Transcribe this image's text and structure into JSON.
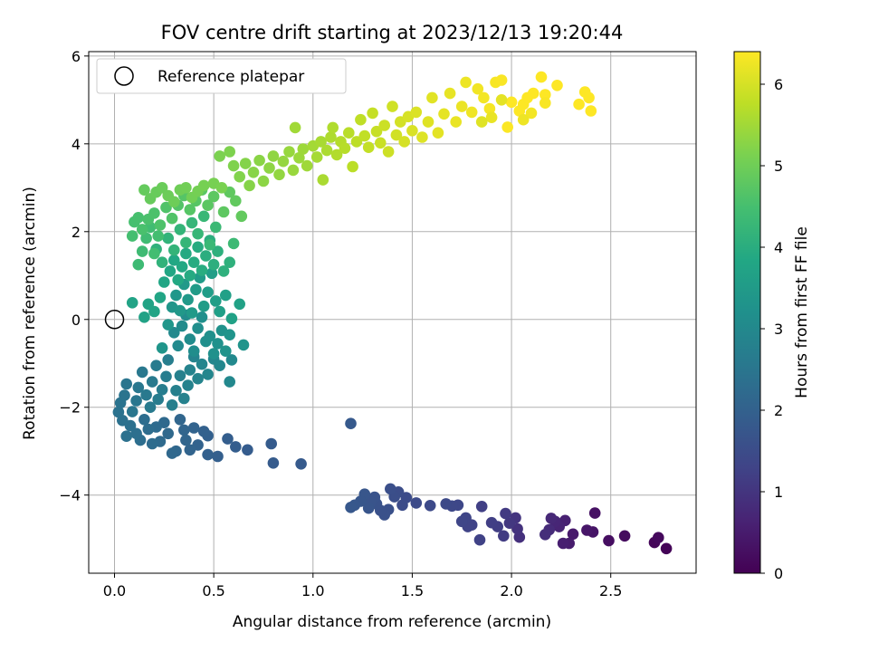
{
  "chart_data": {
    "type": "scatter",
    "title": "FOV centre drift starting at 2023/12/13 19:20:44",
    "xlabel": "Angular distance from reference (arcmin)",
    "ylabel": "Rotation from reference (arcmin)",
    "xlim": [
      -0.13,
      2.93
    ],
    "ylim": [
      -5.78,
      6.1
    ],
    "xticks": [
      0.0,
      0.5,
      1.0,
      1.5,
      2.0,
      2.5
    ],
    "xtick_labels": [
      "0.0",
      "0.5",
      "1.0",
      "1.5",
      "2.0",
      "2.5"
    ],
    "yticks": [
      -4,
      -2,
      0,
      2,
      4,
      6
    ],
    "ytick_labels": [
      "−4",
      "−2",
      "0",
      "2",
      "4",
      "6"
    ],
    "grid": true,
    "legend": {
      "position": "top-left",
      "entries": [
        {
          "label": "Reference platepar",
          "marker": "open-circle"
        }
      ]
    },
    "reference_point": {
      "x": 0.0,
      "y": 0.0
    },
    "colorbar": {
      "label": "Hours from first FF file",
      "colormap": "viridis",
      "range": [
        0,
        6.4
      ],
      "ticks": [
        0,
        1,
        2,
        3,
        4,
        5,
        6
      ],
      "tick_labels": [
        "0",
        "1",
        "2",
        "3",
        "4",
        "5",
        "6"
      ]
    },
    "points": [
      [
        2.78,
        -5.22,
        0.05
      ],
      [
        2.72,
        -5.08,
        0.1
      ],
      [
        2.74,
        -4.97,
        0.15
      ],
      [
        2.57,
        -4.93,
        0.2
      ],
      [
        2.49,
        -5.04,
        0.25
      ],
      [
        2.42,
        -4.41,
        0.3
      ],
      [
        2.41,
        -4.84,
        0.35
      ],
      [
        2.38,
        -4.8,
        0.4
      ],
      [
        2.31,
        -4.89,
        0.45
      ],
      [
        2.29,
        -5.1,
        0.5
      ],
      [
        2.26,
        -5.1,
        0.55
      ],
      [
        2.27,
        -4.58,
        0.6
      ],
      [
        2.24,
        -4.72,
        0.65
      ],
      [
        2.22,
        -4.6,
        0.7
      ],
      [
        2.2,
        -4.53,
        0.75
      ],
      [
        2.19,
        -4.79,
        0.8
      ],
      [
        2.17,
        -4.9,
        0.85
      ],
      [
        2.04,
        -4.96,
        0.9
      ],
      [
        2.03,
        -4.77,
        0.95
      ],
      [
        2.02,
        -4.52,
        1.0
      ],
      [
        1.99,
        -4.64,
        1.05
      ],
      [
        1.97,
        -4.42,
        1.1
      ],
      [
        1.96,
        -4.93,
        1.15
      ],
      [
        1.93,
        -4.72,
        1.18
      ],
      [
        1.9,
        -4.63,
        1.2
      ],
      [
        1.85,
        -4.26,
        1.22
      ],
      [
        1.84,
        -5.02,
        1.25
      ],
      [
        1.8,
        -4.68,
        1.28
      ],
      [
        1.78,
        -4.72,
        1.3
      ],
      [
        1.77,
        -4.52,
        1.32
      ],
      [
        1.75,
        -4.6,
        1.35
      ],
      [
        1.73,
        -4.23,
        1.37
      ],
      [
        1.7,
        -4.25,
        1.4
      ],
      [
        1.67,
        -4.2,
        1.42
      ],
      [
        1.59,
        -4.24,
        1.44
      ],
      [
        1.52,
        -4.18,
        1.46
      ],
      [
        1.47,
        -4.06,
        1.48
      ],
      [
        1.45,
        -4.23,
        1.5
      ],
      [
        1.43,
        -3.93,
        1.52
      ],
      [
        1.41,
        -4.04,
        1.54
      ],
      [
        1.39,
        -3.86,
        1.56
      ],
      [
        1.38,
        -4.33,
        1.58
      ],
      [
        1.36,
        -4.45,
        1.6
      ],
      [
        1.34,
        -4.35,
        1.62
      ],
      [
        1.32,
        -4.2,
        1.64
      ],
      [
        1.31,
        -4.05,
        1.66
      ],
      [
        1.29,
        -4.16,
        1.68
      ],
      [
        1.28,
        -4.3,
        1.7
      ],
      [
        1.26,
        -3.98,
        1.72
      ],
      [
        1.24,
        -4.14,
        1.74
      ],
      [
        1.21,
        -4.23,
        1.76
      ],
      [
        1.19,
        -4.28,
        1.78
      ],
      [
        1.19,
        -2.37,
        1.8
      ],
      [
        0.94,
        -3.29,
        1.82
      ],
      [
        0.8,
        -3.27,
        1.84
      ],
      [
        0.79,
        -2.83,
        1.86
      ],
      [
        0.67,
        -2.97,
        1.88
      ],
      [
        0.61,
        -2.9,
        1.9
      ],
      [
        0.57,
        -2.72,
        1.92
      ],
      [
        0.52,
        -3.12,
        1.94
      ],
      [
        0.47,
        -3.08,
        1.96
      ],
      [
        0.47,
        -2.65,
        1.98
      ],
      [
        0.45,
        -2.55,
        2.0
      ],
      [
        0.42,
        -2.86,
        2.02
      ],
      [
        0.4,
        -2.47,
        2.04
      ],
      [
        0.38,
        -2.97,
        2.06
      ],
      [
        0.36,
        -2.75,
        2.08
      ],
      [
        0.35,
        -2.52,
        2.1
      ],
      [
        0.33,
        -2.28,
        2.12
      ],
      [
        0.31,
        -3.0,
        2.14
      ],
      [
        0.29,
        -3.05,
        2.16
      ],
      [
        0.27,
        -2.6,
        2.18
      ],
      [
        0.25,
        -2.35,
        2.2
      ],
      [
        0.23,
        -2.78,
        2.22
      ],
      [
        0.21,
        -2.45,
        2.24
      ],
      [
        0.19,
        -2.83,
        2.26
      ],
      [
        0.17,
        -2.5,
        2.28
      ],
      [
        0.15,
        -2.28,
        2.3
      ],
      [
        0.13,
        -2.75,
        2.32
      ],
      [
        0.11,
        -2.6,
        2.34
      ],
      [
        0.08,
        -2.42,
        2.36
      ],
      [
        0.06,
        -2.66,
        2.38
      ],
      [
        0.04,
        -2.3,
        2.4
      ],
      [
        0.02,
        -2.11,
        2.42
      ],
      [
        0.03,
        -1.9,
        2.44
      ],
      [
        0.05,
        -1.73,
        2.46
      ],
      [
        0.06,
        -1.47,
        2.48
      ],
      [
        0.09,
        -2.1,
        2.5
      ],
      [
        0.11,
        -1.85,
        2.52
      ],
      [
        0.12,
        -1.55,
        2.54
      ],
      [
        0.14,
        -1.2,
        2.56
      ],
      [
        0.16,
        -1.72,
        2.58
      ],
      [
        0.18,
        -2.0,
        2.6
      ],
      [
        0.19,
        -1.42,
        2.62
      ],
      [
        0.21,
        -1.05,
        2.64
      ],
      [
        0.22,
        -1.82,
        2.66
      ],
      [
        0.24,
        -1.6,
        2.68
      ],
      [
        0.26,
        -1.3,
        2.7
      ],
      [
        0.27,
        -0.92,
        2.72
      ],
      [
        0.29,
        -1.95,
        2.74
      ],
      [
        0.31,
        -1.62,
        2.76
      ],
      [
        0.33,
        -1.28,
        2.78
      ],
      [
        0.35,
        -1.8,
        2.8
      ],
      [
        0.37,
        -1.5,
        2.82
      ],
      [
        0.38,
        -1.15,
        2.84
      ],
      [
        0.4,
        -0.85,
        2.86
      ],
      [
        0.42,
        -1.35,
        2.88
      ],
      [
        0.44,
        -1.02,
        2.9
      ],
      [
        0.47,
        -1.25,
        2.92
      ],
      [
        0.5,
        -0.9,
        2.94
      ],
      [
        0.53,
        -1.05,
        2.96
      ],
      [
        0.58,
        -1.42,
        2.98
      ],
      [
        0.59,
        -0.92,
        3.0
      ],
      [
        0.3,
        -0.3,
        3.02
      ],
      [
        0.32,
        -0.6,
        3.04
      ],
      [
        0.34,
        -0.15,
        3.06
      ],
      [
        0.36,
        0.1,
        3.08
      ],
      [
        0.38,
        -0.45,
        3.1
      ],
      [
        0.4,
        -0.72,
        3.12
      ],
      [
        0.42,
        -0.2,
        3.14
      ],
      [
        0.44,
        0.05,
        3.16
      ],
      [
        0.46,
        -0.5,
        3.18
      ],
      [
        0.48,
        -0.38,
        3.2
      ],
      [
        0.5,
        -0.78,
        3.22
      ],
      [
        0.52,
        -0.55,
        3.24
      ],
      [
        0.54,
        -0.25,
        3.26
      ],
      [
        0.56,
        -0.72,
        3.28
      ],
      [
        0.58,
        -0.35,
        3.3
      ],
      [
        0.65,
        -0.58,
        3.32
      ],
      [
        0.24,
        -0.65,
        3.34
      ],
      [
        0.27,
        -0.12,
        3.36
      ],
      [
        0.29,
        0.28,
        3.38
      ],
      [
        0.31,
        0.55,
        3.4
      ],
      [
        0.33,
        0.2,
        3.42
      ],
      [
        0.35,
        0.8,
        3.44
      ],
      [
        0.37,
        0.45,
        3.46
      ],
      [
        0.39,
        0.15,
        3.48
      ],
      [
        0.41,
        0.68,
        3.5
      ],
      [
        0.43,
        0.95,
        3.52
      ],
      [
        0.45,
        0.3,
        3.54
      ],
      [
        0.47,
        0.62,
        3.56
      ],
      [
        0.49,
        1.05,
        3.58
      ],
      [
        0.51,
        0.42,
        3.6
      ],
      [
        0.53,
        0.18,
        3.62
      ],
      [
        0.56,
        0.55,
        3.64
      ],
      [
        0.59,
        0.02,
        3.66
      ],
      [
        0.63,
        0.35,
        3.68
      ],
      [
        0.15,
        0.05,
        3.7
      ],
      [
        0.09,
        0.38,
        3.72
      ],
      [
        0.17,
        0.35,
        3.74
      ],
      [
        0.2,
        0.18,
        3.76
      ],
      [
        0.23,
        0.5,
        3.78
      ],
      [
        0.25,
        0.85,
        3.8
      ],
      [
        0.28,
        1.1,
        3.82
      ],
      [
        0.3,
        1.35,
        3.84
      ],
      [
        0.32,
        0.9,
        3.86
      ],
      [
        0.34,
        1.2,
        3.88
      ],
      [
        0.36,
        1.5,
        3.9
      ],
      [
        0.38,
        1.0,
        3.92
      ],
      [
        0.4,
        1.3,
        3.94
      ],
      [
        0.42,
        1.65,
        3.96
      ],
      [
        0.44,
        1.12,
        3.98
      ],
      [
        0.46,
        1.45,
        4.0
      ],
      [
        0.48,
        1.8,
        4.02
      ],
      [
        0.5,
        1.25,
        4.04
      ],
      [
        0.52,
        1.55,
        4.06
      ],
      [
        0.55,
        1.1,
        4.08
      ],
      [
        0.58,
        1.3,
        4.1
      ],
      [
        0.21,
        1.6,
        4.12
      ],
      [
        0.24,
        1.3,
        4.14
      ],
      [
        0.27,
        1.85,
        4.16
      ],
      [
        0.3,
        1.58,
        4.18
      ],
      [
        0.33,
        2.05,
        4.2
      ],
      [
        0.36,
        1.75,
        4.22
      ],
      [
        0.39,
        2.2,
        4.24
      ],
      [
        0.42,
        1.95,
        4.26
      ],
      [
        0.45,
        2.35,
        4.28
      ],
      [
        0.48,
        1.7,
        4.3
      ],
      [
        0.51,
        2.1,
        4.32
      ],
      [
        0.6,
        1.73,
        4.34
      ],
      [
        0.12,
        1.25,
        4.36
      ],
      [
        0.14,
        1.55,
        4.38
      ],
      [
        0.16,
        1.85,
        4.4
      ],
      [
        0.18,
        2.1,
        4.42
      ],
      [
        0.2,
        1.5,
        4.44
      ],
      [
        0.22,
        1.9,
        4.46
      ],
      [
        0.09,
        1.9,
        4.48
      ],
      [
        0.1,
        2.22,
        4.5
      ],
      [
        0.12,
        2.32,
        4.52
      ],
      [
        0.14,
        2.05,
        4.54
      ],
      [
        0.17,
        2.28,
        4.56
      ],
      [
        0.2,
        2.42,
        4.58
      ],
      [
        0.23,
        2.15,
        4.6
      ],
      [
        0.26,
        2.55,
        4.62
      ],
      [
        0.29,
        2.3,
        4.64
      ],
      [
        0.32,
        2.6,
        4.66
      ],
      [
        0.35,
        2.82,
        4.68
      ],
      [
        0.38,
        2.5,
        4.7
      ],
      [
        0.41,
        2.7,
        4.72
      ],
      [
        0.44,
        2.95,
        4.74
      ],
      [
        0.47,
        2.6,
        4.76
      ],
      [
        0.5,
        2.8,
        4.78
      ],
      [
        0.55,
        2.45,
        4.8
      ],
      [
        0.58,
        2.9,
        4.82
      ],
      [
        0.61,
        2.7,
        4.84
      ],
      [
        0.64,
        2.35,
        4.86
      ],
      [
        0.15,
        2.95,
        4.88
      ],
      [
        0.18,
        2.75,
        4.9
      ],
      [
        0.21,
        2.9,
        4.92
      ],
      [
        0.24,
        3.0,
        4.94
      ],
      [
        0.27,
        2.82,
        4.96
      ],
      [
        0.3,
        2.68,
        4.98
      ],
      [
        0.33,
        2.95,
        5.0
      ],
      [
        0.36,
        3.0,
        5.02
      ],
      [
        0.39,
        2.78,
        5.04
      ],
      [
        0.42,
        2.92,
        5.06
      ],
      [
        0.45,
        3.05,
        5.08
      ],
      [
        0.5,
        3.1,
        5.1
      ],
      [
        0.54,
        3.0,
        5.12
      ],
      [
        0.53,
        3.72,
        5.14
      ],
      [
        0.58,
        3.82,
        5.16
      ],
      [
        0.6,
        3.5,
        5.18
      ],
      [
        0.63,
        3.25,
        5.2
      ],
      [
        0.66,
        3.55,
        5.22
      ],
      [
        0.68,
        3.05,
        5.24
      ],
      [
        0.7,
        3.35,
        5.26
      ],
      [
        0.73,
        3.62,
        5.28
      ],
      [
        0.75,
        3.15,
        5.3
      ],
      [
        0.78,
        3.45,
        5.32
      ],
      [
        0.8,
        3.72,
        5.34
      ],
      [
        0.83,
        3.3,
        5.36
      ],
      [
        0.85,
        3.6,
        5.38
      ],
      [
        0.88,
        3.82,
        5.4
      ],
      [
        0.9,
        3.4,
        5.42
      ],
      [
        0.93,
        3.68,
        5.44
      ],
      [
        0.95,
        3.88,
        5.46
      ],
      [
        0.97,
        3.5,
        5.48
      ],
      [
        0.91,
        4.37,
        5.5
      ],
      [
        1.0,
        3.95,
        5.52
      ],
      [
        1.02,
        3.7,
        5.54
      ],
      [
        1.04,
        4.05,
        5.56
      ],
      [
        1.05,
        3.18,
        5.58
      ],
      [
        1.07,
        3.85,
        5.6
      ],
      [
        1.09,
        4.15,
        5.62
      ],
      [
        1.1,
        4.37,
        5.64
      ],
      [
        1.12,
        3.75,
        5.66
      ],
      [
        1.14,
        4.05,
        5.68
      ],
      [
        1.16,
        3.9,
        5.7
      ],
      [
        1.18,
        4.25,
        5.72
      ],
      [
        1.2,
        3.48,
        5.74
      ],
      [
        1.22,
        4.05,
        5.76
      ],
      [
        1.24,
        4.55,
        5.78
      ],
      [
        1.26,
        4.18,
        5.8
      ],
      [
        1.28,
        3.92,
        5.82
      ],
      [
        1.3,
        4.7,
        5.84
      ],
      [
        1.32,
        4.28,
        5.86
      ],
      [
        1.34,
        4.02,
        5.88
      ],
      [
        1.36,
        4.42,
        5.9
      ],
      [
        1.38,
        3.82,
        5.92
      ],
      [
        1.4,
        4.85,
        5.94
      ],
      [
        1.42,
        4.2,
        5.96
      ],
      [
        1.44,
        4.5,
        5.98
      ],
      [
        1.46,
        4.05,
        6.0
      ],
      [
        1.48,
        4.62,
        6.02
      ],
      [
        1.5,
        4.3,
        6.04
      ],
      [
        1.52,
        4.72,
        6.06
      ],
      [
        1.55,
        4.15,
        6.08
      ],
      [
        1.58,
        4.5,
        6.1
      ],
      [
        1.6,
        5.05,
        6.12
      ],
      [
        1.63,
        4.25,
        6.14
      ],
      [
        1.66,
        4.68,
        6.16
      ],
      [
        1.69,
        5.15,
        6.18
      ],
      [
        1.72,
        4.5,
        6.2
      ],
      [
        1.75,
        4.85,
        6.22
      ],
      [
        1.77,
        5.4,
        6.24
      ],
      [
        1.8,
        4.72,
        6.26
      ],
      [
        1.83,
        5.25,
        6.28
      ],
      [
        1.86,
        5.05,
        6.3
      ],
      [
        1.89,
        4.8,
        6.32
      ],
      [
        1.92,
        5.4,
        6.34
      ],
      [
        1.95,
        5.45,
        6.36
      ],
      [
        1.98,
        4.38,
        6.38
      ],
      [
        2.0,
        4.95,
        6.4
      ],
      [
        2.04,
        4.75,
        6.4
      ],
      [
        2.06,
        4.9,
        6.4
      ],
      [
        2.08,
        5.05,
        6.4
      ],
      [
        2.11,
        5.15,
        6.4
      ],
      [
        2.15,
        5.52,
        6.4
      ],
      [
        2.17,
        5.12,
        6.4
      ],
      [
        2.23,
        5.33,
        6.4
      ],
      [
        2.34,
        4.9,
        6.4
      ],
      [
        2.37,
        5.18,
        6.4
      ],
      [
        2.39,
        5.05,
        6.4
      ],
      [
        2.4,
        4.75,
        6.4
      ],
      [
        2.17,
        4.93,
        6.35
      ],
      [
        2.1,
        4.7,
        6.3
      ],
      [
        2.06,
        4.55,
        6.25
      ],
      [
        1.9,
        4.6,
        6.2
      ],
      [
        1.95,
        5.0,
        6.15
      ],
      [
        1.85,
        4.5,
        6.1
      ]
    ]
  }
}
